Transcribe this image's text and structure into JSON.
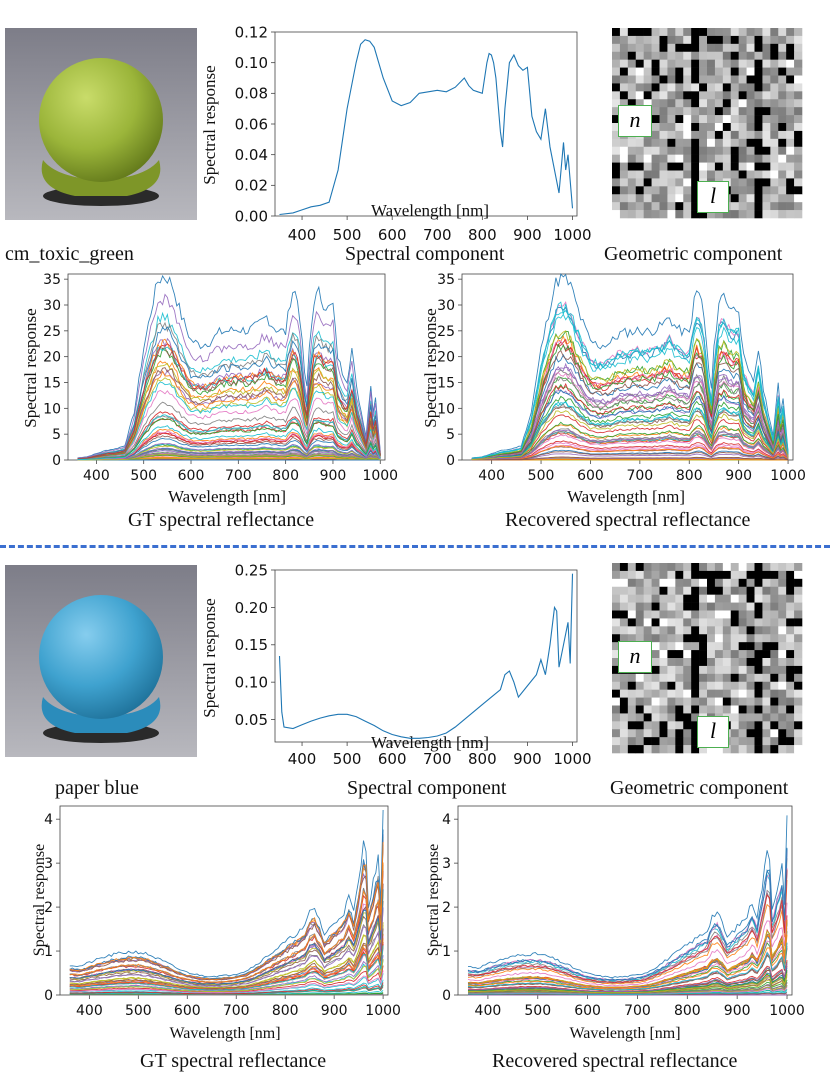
{
  "sections": [
    {
      "material": "cm_toxic_green",
      "sphere_color": "#9bb53a",
      "sphere_hi": "#c9dc6a",
      "sphere_dark": "#5e7418",
      "backdrop": "#8f8f98",
      "spectral": {
        "caption": "Spectral component",
        "xlabel": "Wavelength [nm]",
        "ylabel": "Spectral response",
        "ylim": [
          0,
          0.12
        ],
        "yticks": [
          "0.00",
          "0.02",
          "0.04",
          "0.06",
          "0.08",
          "0.10",
          "0.12"
        ],
        "xticks": [
          "400",
          "500",
          "600",
          "700",
          "800",
          "900",
          "1000"
        ],
        "line_color": "#1f77b4"
      },
      "geometric": {
        "caption": "Geometric component",
        "n_label": "n",
        "l_label": "l"
      },
      "gt": {
        "caption": "GT spectral reflectance",
        "xlabel": "Wavelength [nm]",
        "ylabel": "Spectral response",
        "ylim": [
          0,
          36
        ],
        "yticks": [
          "0",
          "5",
          "10",
          "15",
          "20",
          "25",
          "30",
          "35"
        ],
        "xticks": [
          "400",
          "500",
          "600",
          "700",
          "800",
          "900",
          "1000"
        ]
      },
      "rec": {
        "caption": "Recovered spectral reflectance",
        "xlabel": "Wavelength [nm]",
        "ylabel": "Spectral response",
        "ylim": [
          0,
          36
        ],
        "yticks": [
          "0",
          "5",
          "10",
          "15",
          "20",
          "25",
          "30",
          "35"
        ],
        "xticks": [
          "400",
          "500",
          "600",
          "700",
          "800",
          "900",
          "1000"
        ]
      }
    },
    {
      "material": "paper blue",
      "sphere_color": "#3fa2cf",
      "sphere_hi": "#86cdee",
      "sphere_dark": "#1c6e96",
      "backdrop": "#8f8f98",
      "spectral": {
        "caption": "Spectral component",
        "xlabel": "Wavelength [nm]",
        "ylabel": "Spectral response",
        "ylim": [
          0.02,
          0.25
        ],
        "yticks": [
          "0.05",
          "0.10",
          "0.15",
          "0.20",
          "0.25"
        ],
        "xticks": [
          "400",
          "500",
          "600",
          "700",
          "800",
          "900",
          "1000"
        ],
        "line_color": "#1f77b4"
      },
      "geometric": {
        "caption": "Geometric component",
        "n_label": "n",
        "l_label": "l"
      },
      "gt": {
        "caption": "GT spectral reflectance",
        "xlabel": "Wavelength [nm]",
        "ylabel": "Spectral response",
        "ylim": [
          0,
          4.3
        ],
        "yticks": [
          "0",
          "1",
          "2",
          "3",
          "4"
        ],
        "xticks": [
          "400",
          "500",
          "600",
          "700",
          "800",
          "900",
          "1000"
        ]
      },
      "rec": {
        "caption": "Recovered spectral reflectance",
        "xlabel": "Wavelength [nm]",
        "ylabel": "Spectral response",
        "ylim": [
          0,
          4.3
        ],
        "yticks": [
          "0",
          "1",
          "2",
          "3",
          "4"
        ],
        "xticks": [
          "400",
          "500",
          "600",
          "700",
          "800",
          "900",
          "1000"
        ]
      }
    }
  ],
  "chart_data": [
    {
      "type": "line",
      "title": "Spectral component (cm_toxic_green)",
      "xlabel": "Wavelength [nm]",
      "ylabel": "Spectral response",
      "xlim": [
        340,
        1010
      ],
      "ylim": [
        0,
        0.12
      ],
      "x": [
        350,
        380,
        400,
        420,
        440,
        460,
        480,
        500,
        520,
        530,
        540,
        550,
        560,
        580,
        600,
        620,
        640,
        660,
        680,
        700,
        720,
        740,
        760,
        770,
        780,
        790,
        800,
        810,
        815,
        820,
        825,
        830,
        840,
        845,
        850,
        860,
        870,
        880,
        890,
        900,
        910,
        920,
        930,
        940,
        950,
        960,
        970,
        980,
        985,
        990,
        1000
      ],
      "values": [
        0.001,
        0.002,
        0.004,
        0.006,
        0.007,
        0.009,
        0.03,
        0.07,
        0.1,
        0.112,
        0.115,
        0.114,
        0.11,
        0.09,
        0.075,
        0.072,
        0.074,
        0.08,
        0.081,
        0.082,
        0.081,
        0.084,
        0.09,
        0.085,
        0.082,
        0.081,
        0.08,
        0.1,
        0.106,
        0.105,
        0.1,
        0.09,
        0.055,
        0.045,
        0.07,
        0.1,
        0.105,
        0.098,
        0.095,
        0.097,
        0.065,
        0.055,
        0.05,
        0.07,
        0.045,
        0.03,
        0.015,
        0.048,
        0.03,
        0.04,
        0.005
      ]
    },
    {
      "type": "line",
      "title": "Spectral component (paper blue)",
      "xlabel": "Wavelength [nm]",
      "ylabel": "Spectral response",
      "xlim": [
        340,
        1010
      ],
      "ylim": [
        0.02,
        0.25
      ],
      "x": [
        350,
        355,
        360,
        380,
        400,
        420,
        440,
        460,
        480,
        500,
        520,
        540,
        560,
        580,
        600,
        620,
        640,
        660,
        680,
        700,
        720,
        740,
        760,
        780,
        800,
        820,
        840,
        850,
        860,
        870,
        880,
        900,
        920,
        930,
        940,
        950,
        960,
        965,
        970,
        980,
        990,
        995,
        1000
      ],
      "values": [
        0.135,
        0.06,
        0.04,
        0.038,
        0.043,
        0.048,
        0.052,
        0.055,
        0.057,
        0.057,
        0.054,
        0.048,
        0.042,
        0.035,
        0.03,
        0.027,
        0.025,
        0.025,
        0.026,
        0.028,
        0.032,
        0.04,
        0.05,
        0.06,
        0.07,
        0.08,
        0.09,
        0.11,
        0.115,
        0.1,
        0.08,
        0.095,
        0.11,
        0.13,
        0.11,
        0.15,
        0.2,
        0.195,
        0.12,
        0.15,
        0.18,
        0.125,
        0.245
      ]
    },
    {
      "type": "line",
      "title": "GT spectral reflectance (cm_toxic_green)",
      "series_count": 60,
      "xlim": [
        340,
        1010
      ],
      "ylim": [
        0,
        36
      ],
      "max_curve_peak": 35.5
    },
    {
      "type": "line",
      "title": "Recovered spectral reflectance (cm_toxic_green)",
      "series_count": 60,
      "xlim": [
        340,
        1010
      ],
      "ylim": [
        0,
        36
      ],
      "max_curve_peak": 35.2
    },
    {
      "type": "line",
      "title": "GT spectral reflectance (paper blue)",
      "series_count": 60,
      "xlim": [
        340,
        1010
      ],
      "ylim": [
        0,
        4.3
      ],
      "max_curve_peak": 4.2
    },
    {
      "type": "line",
      "title": "Recovered spectral reflectance (paper blue)",
      "series_count": 60,
      "xlim": [
        340,
        1010
      ],
      "ylim": [
        0,
        4.3
      ],
      "max_curve_peak": 4.0
    }
  ]
}
